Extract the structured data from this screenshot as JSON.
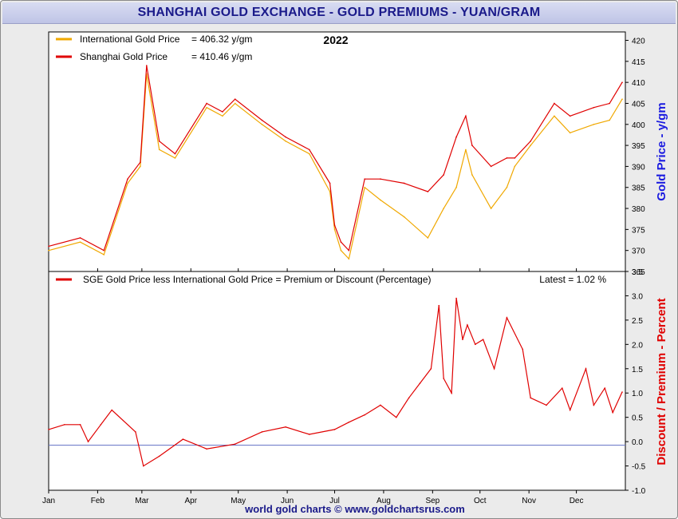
{
  "header": {
    "title": "SHANGHAI GOLD EXCHANGE - GOLD PREMIUMS - YUAN/GRAM"
  },
  "footer": {
    "credit": "world gold charts © www.goldchartsrus.com"
  },
  "top_panel": {
    "year": "2022",
    "legend": [
      {
        "label": "International Gold Price",
        "value": "= 406.32 y/gm",
        "color": "#f0a800"
      },
      {
        "label": "Shanghai Gold Price",
        "value": "= 410.46 y/gm",
        "color": "#e00000"
      }
    ],
    "right_axis_label": "Gold Price - y/gm"
  },
  "bottom_panel": {
    "legend": {
      "label": "SGE Gold Price less International Gold Price = Premium or Discount (Percentage)",
      "color": "#e00000"
    },
    "latest": "Latest = 1.02 %",
    "right_axis_label": "Discount / Premium - Percent"
  },
  "chart_data": [
    {
      "type": "line",
      "ylim": [
        365,
        422
      ],
      "yticks": [
        365,
        370,
        375,
        380,
        385,
        390,
        395,
        400,
        405,
        410,
        415,
        420
      ],
      "months": [
        "Jan",
        "Feb",
        "Mar",
        "Apr",
        "May",
        "Jun",
        "Jul",
        "Aug",
        "Sep",
        "Oct",
        "Nov",
        "Dec"
      ],
      "x_days": [
        0,
        20,
        35,
        50,
        58,
        62,
        70,
        80,
        100,
        110,
        118,
        135,
        150,
        165,
        178,
        181,
        185,
        190,
        200,
        210,
        225,
        240,
        250,
        258,
        264,
        268,
        280,
        290,
        295,
        305,
        320,
        330,
        345,
        355,
        363
      ],
      "series": [
        {
          "name": "International Gold Price",
          "color": "#f0a800",
          "values": [
            370,
            372,
            369,
            386,
            390,
            412,
            394,
            392,
            404,
            402,
            405,
            400,
            396,
            393,
            384,
            375,
            370,
            368,
            385,
            382,
            378,
            373,
            380,
            385,
            394,
            388,
            380,
            385,
            390,
            395,
            402,
            398,
            400,
            401,
            406
          ]
        },
        {
          "name": "Shanghai Gold Price",
          "color": "#e00000",
          "values": [
            371,
            373,
            370,
            387,
            391,
            414,
            396,
            393,
            405,
            403,
            406,
            401,
            397,
            394,
            386,
            376,
            372,
            370,
            387,
            387,
            386,
            384,
            388,
            397,
            402,
            395,
            390,
            392,
            392,
            396,
            405,
            402,
            404,
            405,
            410
          ]
        }
      ]
    },
    {
      "type": "line",
      "ylim": [
        -1.0,
        3.5
      ],
      "yticks": [
        -1.0,
        -0.5,
        0.0,
        0.5,
        1.0,
        1.5,
        2.0,
        2.5,
        3.0,
        3.5
      ],
      "months": [
        "Jan",
        "Feb",
        "Mar",
        "Apr",
        "May",
        "Jun",
        "Jul",
        "Aug",
        "Sep",
        "Oct",
        "Nov",
        "Dec"
      ],
      "x_days": [
        0,
        10,
        20,
        25,
        33,
        40,
        55,
        60,
        70,
        85,
        100,
        118,
        135,
        150,
        165,
        181,
        190,
        200,
        210,
        220,
        228,
        235,
        242,
        247,
        250,
        255,
        258,
        262,
        265,
        270,
        275,
        282,
        290,
        300,
        305,
        315,
        325,
        330,
        340,
        345,
        352,
        357,
        363
      ],
      "series": [
        {
          "name": "Premium",
          "color": "#e00000",
          "values": [
            0.25,
            0.35,
            0.35,
            0.0,
            0.35,
            0.65,
            0.2,
            -0.5,
            -0.3,
            0.05,
            -0.15,
            -0.05,
            0.2,
            0.3,
            0.15,
            0.25,
            0.4,
            0.55,
            0.75,
            0.5,
            0.9,
            1.2,
            1.5,
            2.8,
            1.3,
            1.0,
            2.95,
            2.1,
            2.4,
            2.0,
            2.1,
            1.5,
            2.55,
            1.9,
            0.9,
            0.75,
            1.1,
            0.65,
            1.5,
            0.75,
            1.1,
            0.6,
            1.02
          ]
        }
      ]
    }
  ]
}
